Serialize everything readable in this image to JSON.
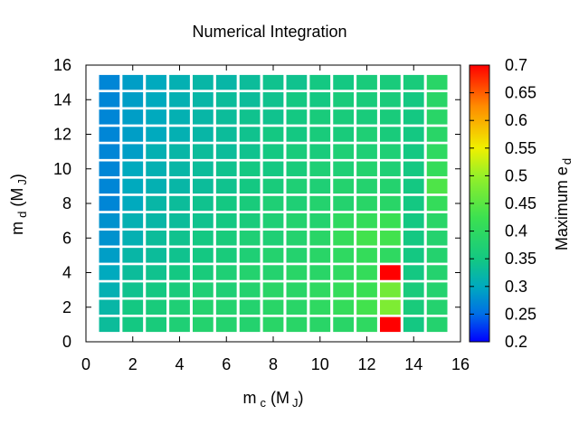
{
  "chart_data": {
    "type": "heatmap",
    "title": "Numerical Integration",
    "xlabel": {
      "base": "m",
      "sub": "c",
      "units_open": " (M",
      "units_sub": "J",
      "units_close": ")"
    },
    "ylabel": {
      "base": "m",
      "sub": "d",
      "units_open": " (M",
      "units_sub": "J",
      "units_close": ")"
    },
    "xlim": [
      0,
      16
    ],
    "ylim": [
      0,
      16
    ],
    "xticks": [
      "0",
      "2",
      "4",
      "6",
      "8",
      "10",
      "12",
      "14",
      "16"
    ],
    "yticks": [
      "0",
      "2",
      "4",
      "6",
      "8",
      "10",
      "12",
      "14",
      "16"
    ],
    "x": [
      1,
      2,
      3,
      4,
      5,
      6,
      7,
      8,
      9,
      10,
      11,
      12,
      13,
      14,
      15
    ],
    "y": [
      1,
      2,
      3,
      4,
      5,
      6,
      7,
      8,
      9,
      10,
      11,
      12,
      13,
      14,
      15
    ],
    "colorbar": {
      "label_base": "Maximum e",
      "label_sub": "d",
      "min": 0.2,
      "max": 0.7,
      "ticks": [
        "0.2",
        "0.25",
        "0.3",
        "0.35",
        "0.4",
        "0.45",
        "0.5",
        "0.55",
        "0.6",
        "0.65",
        "0.7"
      ]
    },
    "z": [
      [
        0.33,
        0.35,
        0.36,
        0.37,
        0.38,
        0.38,
        0.38,
        0.39,
        0.39,
        0.39,
        0.39,
        0.4,
        0.7,
        0.35,
        0.38
      ],
      [
        0.32,
        0.35,
        0.36,
        0.37,
        0.38,
        0.38,
        0.38,
        0.39,
        0.39,
        0.4,
        0.41,
        0.43,
        0.48,
        0.36,
        0.38
      ],
      [
        0.31,
        0.34,
        0.35,
        0.36,
        0.37,
        0.37,
        0.38,
        0.39,
        0.39,
        0.4,
        0.41,
        0.42,
        0.47,
        0.36,
        0.38
      ],
      [
        0.3,
        0.33,
        0.34,
        0.35,
        0.36,
        0.37,
        0.38,
        0.38,
        0.39,
        0.39,
        0.4,
        0.41,
        0.7,
        0.35,
        0.38
      ],
      [
        0.29,
        0.32,
        0.33,
        0.34,
        0.35,
        0.36,
        0.37,
        0.38,
        0.38,
        0.39,
        0.4,
        0.41,
        0.4,
        0.35,
        0.38
      ],
      [
        0.28,
        0.31,
        0.33,
        0.34,
        0.35,
        0.36,
        0.37,
        0.37,
        0.38,
        0.39,
        0.41,
        0.43,
        0.43,
        0.35,
        0.38
      ],
      [
        0.28,
        0.31,
        0.32,
        0.33,
        0.34,
        0.35,
        0.36,
        0.37,
        0.38,
        0.38,
        0.4,
        0.41,
        0.42,
        0.35,
        0.39
      ],
      [
        0.27,
        0.3,
        0.32,
        0.33,
        0.34,
        0.35,
        0.36,
        0.37,
        0.37,
        0.38,
        0.38,
        0.39,
        0.39,
        0.35,
        0.41
      ],
      [
        0.27,
        0.3,
        0.31,
        0.32,
        0.33,
        0.34,
        0.35,
        0.36,
        0.37,
        0.37,
        0.38,
        0.38,
        0.38,
        0.35,
        0.44
      ],
      [
        0.27,
        0.3,
        0.31,
        0.32,
        0.33,
        0.34,
        0.35,
        0.35,
        0.36,
        0.37,
        0.37,
        0.38,
        0.37,
        0.35,
        0.41
      ],
      [
        0.27,
        0.29,
        0.31,
        0.32,
        0.33,
        0.33,
        0.34,
        0.35,
        0.36,
        0.36,
        0.37,
        0.37,
        0.37,
        0.35,
        0.4
      ],
      [
        0.27,
        0.29,
        0.3,
        0.31,
        0.32,
        0.33,
        0.34,
        0.35,
        0.35,
        0.36,
        0.36,
        0.37,
        0.36,
        0.35,
        0.39
      ],
      [
        0.27,
        0.29,
        0.3,
        0.31,
        0.32,
        0.33,
        0.34,
        0.34,
        0.35,
        0.36,
        0.36,
        0.36,
        0.36,
        0.35,
        0.39
      ],
      [
        0.27,
        0.29,
        0.3,
        0.31,
        0.32,
        0.33,
        0.33,
        0.34,
        0.35,
        0.35,
        0.36,
        0.36,
        0.36,
        0.35,
        0.39
      ],
      [
        0.27,
        0.29,
        0.3,
        0.31,
        0.32,
        0.32,
        0.33,
        0.34,
        0.34,
        0.35,
        0.35,
        0.36,
        0.36,
        0.36,
        0.39
      ]
    ]
  }
}
